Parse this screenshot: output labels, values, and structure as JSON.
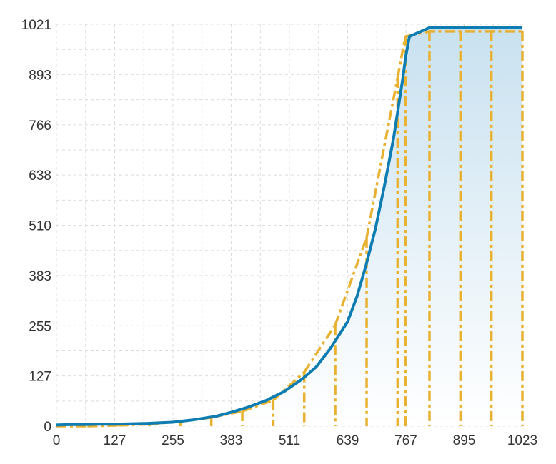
{
  "chart_data": {
    "type": "area",
    "title": "",
    "xlabel": "",
    "ylabel": "",
    "xlim": [
      0,
      1023
    ],
    "ylim": [
      0,
      1021
    ],
    "x_ticks": [
      {
        "value": 0,
        "label": "0"
      },
      {
        "value": 127.875,
        "label": "127"
      },
      {
        "value": 255.75,
        "label": "255"
      },
      {
        "value": 383.625,
        "label": "383"
      },
      {
        "value": 511.5,
        "label": "511"
      },
      {
        "value": 639.375,
        "label": "639"
      },
      {
        "value": 767.25,
        "label": "767"
      },
      {
        "value": 895.125,
        "label": "895"
      },
      {
        "value": 1023,
        "label": "1023"
      }
    ],
    "y_ticks": [
      {
        "value": 0,
        "label": "0"
      },
      {
        "value": 127.625,
        "label": "127"
      },
      {
        "value": 255.25,
        "label": "255"
      },
      {
        "value": 382.875,
        "label": "383"
      },
      {
        "value": 510.5,
        "label": "510"
      },
      {
        "value": 638.125,
        "label": "638"
      },
      {
        "value": 765.75,
        "label": "766"
      },
      {
        "value": 893.375,
        "label": "893"
      },
      {
        "value": 1021,
        "label": "1021"
      }
    ],
    "grid": true,
    "colors": {
      "curve": "#0F7DB1",
      "gold": "#E8B130",
      "fill_top": "#C9E1F0",
      "fill_bottom": "#FFFFFF",
      "grid": "#DCDCDC",
      "text": "#333333"
    },
    "series": [
      {
        "values": [
          [
            0,
            3
          ],
          [
            30,
            4
          ],
          [
            60,
            4
          ],
          [
            90,
            5
          ],
          [
            127,
            5
          ],
          [
            160,
            6
          ],
          [
            200,
            7
          ],
          [
            255,
            10
          ],
          [
            300,
            16
          ],
          [
            350,
            25
          ],
          [
            383,
            35
          ],
          [
            420,
            48
          ],
          [
            460,
            65
          ],
          [
            500,
            88
          ],
          [
            540,
            120
          ],
          [
            570,
            150
          ],
          [
            600,
            195
          ],
          [
            639,
            265
          ],
          [
            660,
            330
          ],
          [
            680,
            410
          ],
          [
            700,
            500
          ],
          [
            720,
            610
          ],
          [
            740,
            730
          ],
          [
            760,
            880
          ],
          [
            767,
            940
          ],
          [
            775,
            990
          ],
          [
            820,
            1013
          ],
          [
            895,
            1012
          ],
          [
            960,
            1013
          ],
          [
            1023,
            1013
          ]
        ]
      },
      {
        "values": [
          [
            0,
            0
          ],
          [
            68,
            0
          ],
          [
            136,
            2
          ],
          [
            204,
            5
          ],
          [
            272,
            12
          ],
          [
            340,
            22
          ],
          [
            408,
            38
          ],
          [
            476,
            66
          ],
          [
            544,
            137
          ],
          [
            612,
            257
          ],
          [
            681,
            479
          ],
          [
            749,
            885
          ],
          [
            766,
            990
          ],
          [
            819,
            1003
          ],
          [
            887,
            1003
          ],
          [
            955,
            1003
          ],
          [
            1023,
            1003
          ]
        ]
      }
    ]
  }
}
